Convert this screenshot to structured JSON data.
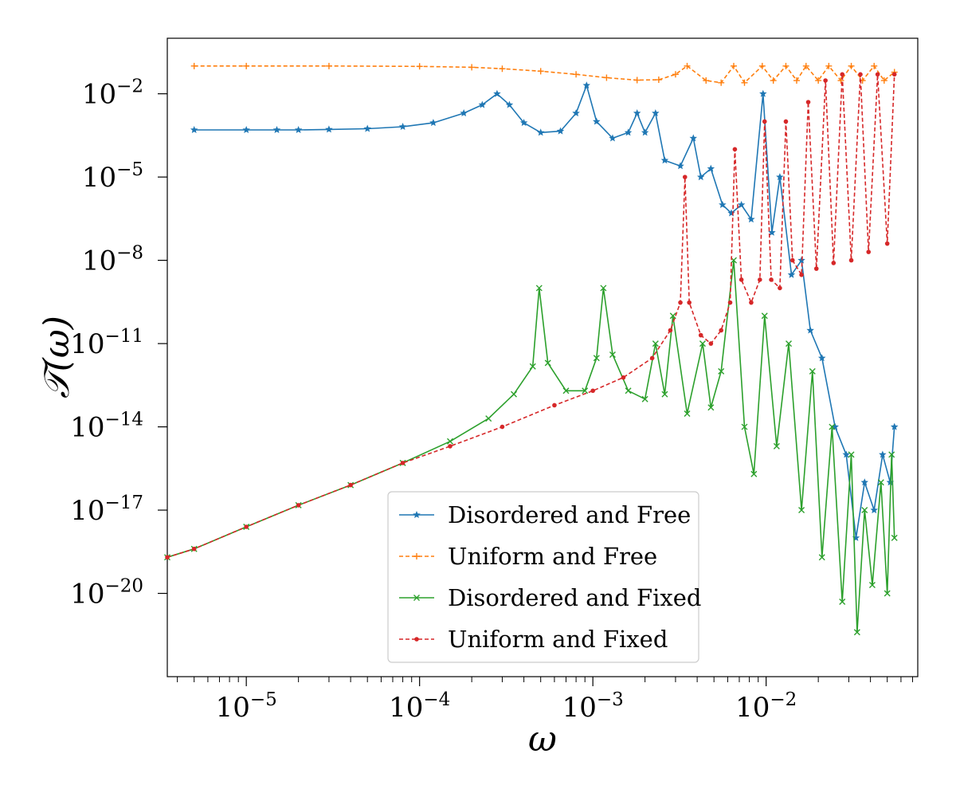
{
  "chart_data": {
    "type": "line",
    "title": "",
    "xlabel": "ω",
    "ylabel": "𝒯(ω)",
    "xscale": "log",
    "yscale": "log",
    "xlim": [
      3.5e-06,
      0.075
    ],
    "ylim": [
      1e-23,
      1.0
    ],
    "x_ticks": [
      {
        "value": 1e-05,
        "base": "10",
        "exp": "−5"
      },
      {
        "value": 0.0001,
        "base": "10",
        "exp": "−4"
      },
      {
        "value": 0.001,
        "base": "10",
        "exp": "−3"
      },
      {
        "value": 0.01,
        "base": "10",
        "exp": "−2"
      }
    ],
    "y_ticks": [
      {
        "value": 0.01,
        "base": "10",
        "exp": "−2"
      },
      {
        "value": 1e-05,
        "base": "10",
        "exp": "−5"
      },
      {
        "value": 1e-08,
        "base": "10",
        "exp": "−8"
      },
      {
        "value": 1e-11,
        "base": "10",
        "exp": "−11"
      },
      {
        "value": 1e-14,
        "base": "10",
        "exp": "−14"
      },
      {
        "value": 1e-17,
        "base": "10",
        "exp": "−17"
      },
      {
        "value": 1e-20,
        "base": "10",
        "exp": "−20"
      }
    ],
    "legend_position": "bottom-center",
    "series": [
      {
        "name": "Disordered and Free",
        "color": "#1f77b4",
        "linestyle": "solid",
        "marker": "star",
        "x": [
          5e-06,
          1e-05,
          1.5e-05,
          2e-05,
          3e-05,
          5e-05,
          8e-05,
          0.00012,
          0.00018,
          0.00023,
          0.00028,
          0.00033,
          0.0004,
          0.0005,
          0.00065,
          0.0008,
          0.00092,
          0.00105,
          0.0013,
          0.0016,
          0.0018,
          0.002,
          0.0023,
          0.0026,
          0.0032,
          0.0038,
          0.0042,
          0.0048,
          0.0056,
          0.0063,
          0.0072,
          0.0082,
          0.0096,
          0.0108,
          0.012,
          0.014,
          0.016,
          0.018,
          0.021,
          0.025,
          0.029,
          0.033,
          0.037,
          0.042,
          0.047,
          0.052,
          0.055
        ],
        "y": [
          0.0005,
          0.0005,
          0.0005,
          0.0005,
          0.00052,
          0.00055,
          0.00065,
          0.0009,
          0.002,
          0.004,
          0.01,
          0.004,
          0.0009,
          0.0004,
          0.00045,
          0.002,
          0.02,
          0.001,
          0.00025,
          0.0004,
          0.002,
          0.0004,
          0.002,
          4e-05,
          2.5e-05,
          0.00025,
          1e-05,
          2e-05,
          1e-06,
          5e-07,
          1e-06,
          3e-07,
          0.01,
          1e-07,
          1e-05,
          3e-09,
          1e-08,
          3e-11,
          3e-12,
          1e-14,
          1e-15,
          1e-18,
          1e-16,
          1e-17,
          1e-15,
          1e-16,
          1e-14
        ]
      },
      {
        "name": "Uniform and Free",
        "color": "#ff7f0e",
        "linestyle": "dashed",
        "marker": "plus",
        "x": [
          5e-06,
          1e-05,
          3e-05,
          0.0001,
          0.0002,
          0.0003,
          0.0005,
          0.0008,
          0.0012,
          0.0018,
          0.0024,
          0.003,
          0.0035,
          0.0045,
          0.0055,
          0.0065,
          0.0075,
          0.0095,
          0.011,
          0.013,
          0.015,
          0.017,
          0.02,
          0.023,
          0.027,
          0.031,
          0.036,
          0.042,
          0.048,
          0.055
        ],
        "y": [
          0.1,
          0.1,
          0.1,
          0.097,
          0.09,
          0.08,
          0.065,
          0.05,
          0.038,
          0.031,
          0.032,
          0.05,
          0.1,
          0.03,
          0.025,
          0.1,
          0.025,
          0.1,
          0.03,
          0.1,
          0.03,
          0.1,
          0.03,
          0.1,
          0.03,
          0.1,
          0.03,
          0.1,
          0.03,
          0.06
        ]
      },
      {
        "name": "Disordered and Fixed",
        "color": "#2ca02c",
        "linestyle": "solid",
        "marker": "x",
        "x": [
          3.5e-06,
          5e-06,
          1e-05,
          2e-05,
          4e-05,
          8e-05,
          0.00015,
          0.00025,
          0.00035,
          0.00045,
          0.00049,
          0.00055,
          0.0007,
          0.0009,
          0.00105,
          0.00115,
          0.0013,
          0.0016,
          0.002,
          0.0023,
          0.0026,
          0.0029,
          0.0035,
          0.0043,
          0.0048,
          0.0055,
          0.0065,
          0.0075,
          0.0085,
          0.0098,
          0.0115,
          0.0135,
          0.016,
          0.0185,
          0.021,
          0.024,
          0.0275,
          0.031,
          0.0335,
          0.037,
          0.041,
          0.046,
          0.05,
          0.053,
          0.055
        ],
        "y": [
          2e-19,
          4e-19,
          2.5e-18,
          1.5e-17,
          8e-17,
          5e-16,
          3e-15,
          2e-14,
          1.5e-13,
          1.5e-12,
          1e-09,
          2e-12,
          2e-13,
          2e-13,
          3e-12,
          1e-09,
          4e-12,
          2e-13,
          1e-13,
          1e-11,
          1.5e-13,
          1e-10,
          3e-14,
          1e-11,
          5e-14,
          1e-12,
          1e-08,
          1e-14,
          2e-16,
          1e-10,
          2e-15,
          1e-11,
          1e-17,
          1e-12,
          2e-19,
          1e-14,
          5e-21,
          1e-15,
          4e-22,
          1e-17,
          2e-20,
          1e-16,
          1e-20,
          1e-15,
          1e-18
        ]
      },
      {
        "name": "Uniform and Fixed",
        "color": "#d62728",
        "linestyle": "dashed",
        "marker": "dot",
        "x": [
          3.5e-06,
          5e-06,
          1e-05,
          2e-05,
          4e-05,
          8e-05,
          0.00015,
          0.0003,
          0.0006,
          0.001,
          0.0015,
          0.0022,
          0.0028,
          0.0032,
          0.0034,
          0.0036,
          0.0042,
          0.0048,
          0.0055,
          0.0062,
          0.0066,
          0.0072,
          0.0082,
          0.0092,
          0.0098,
          0.0107,
          0.012,
          0.013,
          0.0142,
          0.016,
          0.0175,
          0.0195,
          0.022,
          0.0245,
          0.0275,
          0.031,
          0.035,
          0.039,
          0.044,
          0.05,
          0.055
        ],
        "y": [
          2e-19,
          4e-19,
          2.5e-18,
          1.5e-17,
          8e-17,
          5e-16,
          2e-15,
          1e-14,
          6e-14,
          2e-13,
          6e-13,
          3e-12,
          3e-11,
          3e-10,
          1e-05,
          3e-10,
          2e-11,
          1e-11,
          3e-11,
          3e-10,
          0.0001,
          2e-09,
          3e-10,
          2e-09,
          0.001,
          2e-09,
          1e-09,
          0.001,
          1e-08,
          3e-09,
          0.005,
          5e-09,
          0.03,
          8e-09,
          0.05,
          1e-08,
          0.05,
          2e-08,
          0.05,
          4e-08,
          0.05
        ]
      }
    ]
  }
}
